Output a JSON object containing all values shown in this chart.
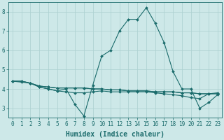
{
  "xlabel": "Humidex (Indice chaleur)",
  "ylabel": "",
  "xlim_min": -0.5,
  "xlim_max": 23.5,
  "ylim": [
    2.5,
    8.5
  ],
  "yticks": [
    3,
    4,
    5,
    6,
    7,
    8
  ],
  "xticks": [
    0,
    1,
    2,
    3,
    4,
    5,
    6,
    7,
    8,
    9,
    10,
    11,
    12,
    13,
    14,
    15,
    16,
    17,
    18,
    19,
    20,
    21,
    22,
    23
  ],
  "background_color": "#cde8e8",
  "grid_color": "#aacfcf",
  "line_color": "#1a6b6b",
  "lines": [
    [
      4.4,
      4.4,
      4.3,
      4.1,
      4.0,
      3.9,
      4.0,
      3.2,
      2.6,
      4.2,
      5.7,
      6.0,
      7.0,
      7.6,
      7.6,
      8.2,
      7.4,
      6.4,
      4.9,
      4.0,
      4.0,
      3.0,
      3.3,
      3.7
    ],
    [
      4.4,
      4.4,
      4.3,
      4.15,
      4.1,
      4.05,
      4.05,
      4.05,
      4.05,
      4.0,
      4.0,
      3.95,
      3.95,
      3.9,
      3.9,
      3.9,
      3.85,
      3.85,
      3.85,
      3.8,
      3.8,
      3.75,
      3.75,
      3.75
    ],
    [
      4.4,
      4.4,
      4.3,
      4.15,
      4.1,
      4.05,
      4.05,
      4.05,
      4.05,
      4.0,
      4.0,
      3.95,
      3.95,
      3.9,
      3.9,
      3.9,
      3.85,
      3.85,
      3.85,
      3.8,
      3.8,
      3.75,
      3.75,
      3.8
    ],
    [
      4.4,
      4.35,
      4.3,
      4.1,
      4.0,
      3.9,
      3.85,
      3.8,
      3.8,
      3.85,
      3.9,
      3.85,
      3.85,
      3.85,
      3.85,
      3.85,
      3.8,
      3.75,
      3.7,
      3.65,
      3.55,
      3.5,
      3.75,
      3.75
    ]
  ],
  "font_color": "#1a6b6b",
  "tick_fontsize": 5.5,
  "label_fontsize": 7,
  "label_fontweight": "bold"
}
